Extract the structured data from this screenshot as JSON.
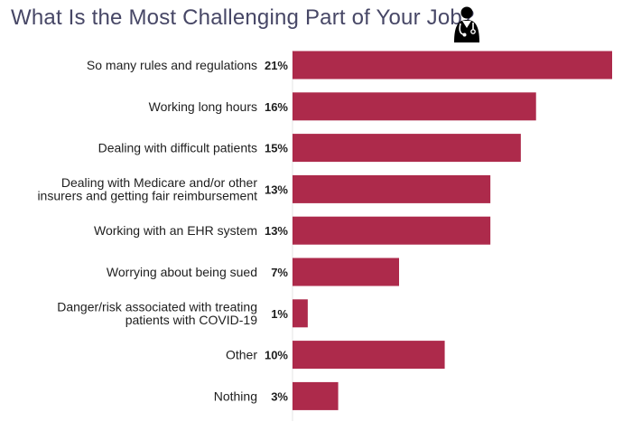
{
  "chart_data": {
    "type": "bar",
    "orientation": "horizontal",
    "title": "What Is the Most Challenging Part of Your Job?",
    "categories": [
      "So many rules and regulations",
      "Working long hours",
      "Dealing with difficult patients",
      "Dealing with Medicare and/or other insurers and getting fair reimbursement",
      "Working with an EHR system",
      "Worrying about being sued",
      "Danger/risk associated with treating patients with COVID-19",
      "Other",
      "Nothing"
    ],
    "category_lines": [
      [
        "So many rules and regulations"
      ],
      [
        "Working long hours"
      ],
      [
        "Dealing with difficult patients"
      ],
      [
        "Dealing with Medicare and/or other",
        "insurers and getting fair reimbursement"
      ],
      [
        "Working with an EHR system"
      ],
      [
        "Worrying about being sued"
      ],
      [
        "Danger/risk associated with treating",
        "patients with COVID-19"
      ],
      [
        "Other"
      ],
      [
        "Nothing"
      ]
    ],
    "values": [
      21,
      16,
      15,
      13,
      13,
      7,
      1,
      10,
      3
    ],
    "value_labels": [
      "21%",
      "16%",
      "15%",
      "13%",
      "13%",
      "7%",
      "1%",
      "10%",
      "3%"
    ],
    "unit": "%",
    "xlim": [
      0,
      21
    ],
    "grid": false,
    "legend": "none",
    "bar_color": "#ad2a4b"
  },
  "icons": {
    "header": "doctor-stethoscope-icon"
  }
}
